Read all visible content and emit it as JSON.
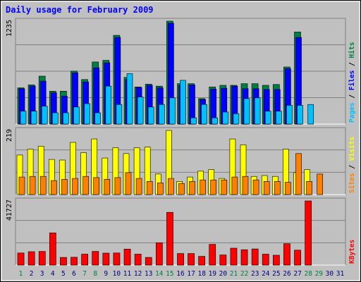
{
  "chart_data": {
    "type": "bar",
    "title": "Daily usage for February 2009",
    "categories": [
      "1",
      "2",
      "3",
      "4",
      "5",
      "6",
      "7",
      "8",
      "9",
      "10",
      "11",
      "12",
      "13",
      "14",
      "15",
      "16",
      "17",
      "18",
      "19",
      "20",
      "21",
      "22",
      "23",
      "24",
      "25",
      "26",
      "27",
      "28",
      "29",
      "30",
      "31"
    ],
    "weekend_days": [
      "1",
      "7",
      "8",
      "14",
      "15",
      "21",
      "22",
      "28",
      "29"
    ],
    "panels": [
      {
        "id": "hits_files_pages",
        "ymax_label": "1235",
        "ymax": 1235,
        "legend": [
          {
            "label": "Pages",
            "color": "#00c0ff"
          },
          {
            "label": "Files",
            "color": "#0000ff"
          },
          {
            "label": "Hits",
            "color": "#008040"
          }
        ],
        "series": [
          {
            "name": "Hits",
            "color": "#008040",
            "values": [
              435,
              470,
              575,
              395,
              395,
              635,
              535,
              745,
              765,
              1065,
              560,
              445,
              480,
              455,
              1235,
              485,
              485,
              305,
              445,
              465,
              465,
              485,
              485,
              465,
              475,
              685,
              1105,
              0,
              0,
              0,
              0
            ]
          },
          {
            "name": "Files",
            "color": "#0000ff",
            "values": [
              425,
              455,
              515,
              375,
              335,
              615,
              505,
              675,
              735,
              1040,
              535,
              440,
              465,
              435,
              1210,
              465,
              470,
              295,
              420,
              430,
              455,
              425,
              425,
              415,
              415,
              665,
              1040,
              0,
              0,
              0,
              0
            ]
          },
          {
            "name": "Pages",
            "color": "#00c0ff",
            "values": [
              155,
              155,
              215,
              135,
              135,
              205,
              245,
              135,
              455,
              235,
              605,
              325,
              205,
              235,
              315,
              525,
              75,
              235,
              75,
              145,
              125,
              305,
              315,
              155,
              155,
              225,
              225,
              235,
              0,
              0,
              0
            ]
          }
        ]
      },
      {
        "id": "visits_sites",
        "ymax_label": "219",
        "ymax": 219,
        "legend": [
          {
            "label": "Sites",
            "color": "#ff8000"
          },
          {
            "label": "Visits",
            "color": "#ffff00"
          }
        ],
        "series": [
          {
            "name": "Visits",
            "color": "#ffff00",
            "values": [
              135,
              155,
              165,
              120,
              118,
              178,
              143,
              190,
              125,
              160,
              140,
              160,
              162,
              70,
              219,
              45,
              60,
              80,
              85,
              55,
              190,
              170,
              62,
              65,
              62,
              155,
              75,
              85,
              0,
              0,
              0
            ]
          },
          {
            "name": "Sites",
            "color": "#ff8000",
            "values": [
              60,
              62,
              62,
              48,
              52,
              55,
              62,
              58,
              52,
              58,
              75,
              55,
              45,
              40,
              55,
              38,
              45,
              50,
              50,
              50,
              60,
              62,
              50,
              45,
              45,
              42,
              140,
              45,
              70,
              0,
              0
            ]
          }
        ]
      },
      {
        "id": "kbytes",
        "ymax_label": "41727",
        "ymax": 41727,
        "legend": [
          {
            "label": "KBytes",
            "color": "#ff0000"
          }
        ],
        "series": [
          {
            "name": "KBytes",
            "color": "#ff0000",
            "values": [
              7900,
              8700,
              8900,
              20900,
              5000,
              5100,
              7100,
              8900,
              7800,
              7900,
              10400,
              7100,
              5000,
              14500,
              34300,
              7500,
              7500,
              5700,
              13500,
              6600,
              11000,
              10000,
              10500,
              7100,
              6400,
              13900,
              9700,
              41727,
              0,
              0,
              0
            ]
          }
        ]
      }
    ]
  },
  "colors": {
    "background": "#c0c0c0",
    "title": "#0000ff",
    "weekday_label": "#000080",
    "weekend_label": "#008040"
  }
}
